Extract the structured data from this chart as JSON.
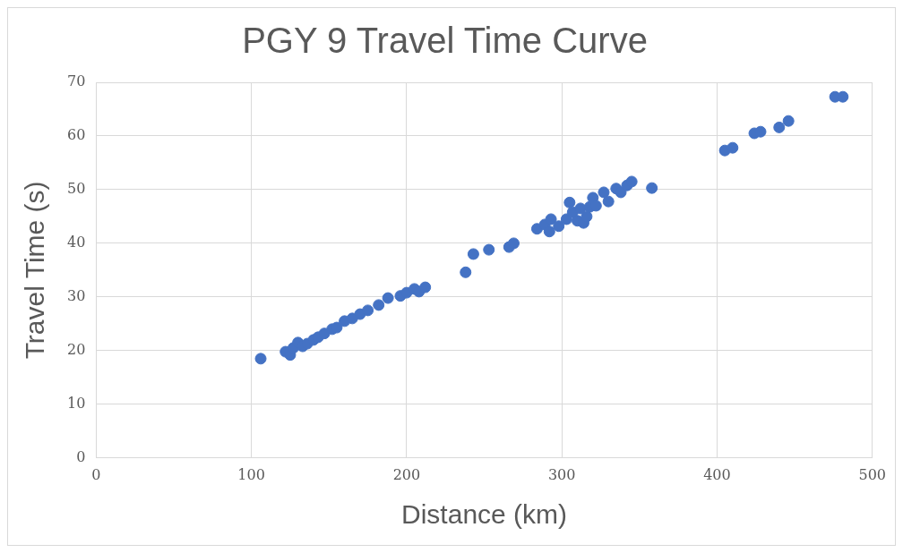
{
  "chart_data": {
    "type": "scatter",
    "title": "PGY 9 Travel Time Curve",
    "xlabel": "Distance (km)",
    "ylabel": "Travel Time (s)",
    "xlim": [
      0,
      500
    ],
    "xticks": [
      0,
      100,
      200,
      300,
      400,
      500
    ],
    "ylim": [
      0,
      70
    ],
    "yticks": [
      0,
      10,
      20,
      30,
      40,
      50,
      60,
      70
    ],
    "grid": true,
    "legend": false,
    "marker": "circle",
    "series": [
      {
        "color": "#4472c4",
        "x": [
          106,
          122,
          125,
          127,
          130,
          133,
          136,
          140,
          143,
          147,
          152,
          155,
          160,
          165,
          170,
          175,
          182,
          188,
          196,
          200,
          205,
          208,
          212,
          238,
          243,
          253,
          266,
          269,
          284,
          289,
          292,
          293,
          298,
          303,
          305,
          307,
          310,
          312,
          314,
          316,
          318,
          320,
          322,
          327,
          330,
          335,
          338,
          342,
          345,
          358,
          405,
          410,
          424,
          428,
          440,
          446,
          476,
          481
        ],
        "values": [
          18.5,
          19.8,
          19.2,
          20.5,
          21.5,
          20.8,
          21.3,
          22,
          22.5,
          23.2,
          24,
          24.3,
          25.5,
          26,
          26.8,
          27.5,
          28.5,
          29.8,
          30.2,
          30.8,
          31.5,
          31,
          31.8,
          34.6,
          38,
          38.8,
          39.3,
          40,
          42.7,
          43.5,
          42.2,
          44.5,
          43.2,
          44.5,
          47.6,
          45.8,
          44.2,
          46.5,
          43.8,
          45,
          46.8,
          48.5,
          47,
          49.5,
          47.8,
          50.2,
          49.5,
          50.8,
          51.5,
          50.3,
          57.3,
          57.8,
          60.5,
          60.8,
          61.6,
          62.8,
          67.3,
          67.3
        ]
      }
    ]
  }
}
